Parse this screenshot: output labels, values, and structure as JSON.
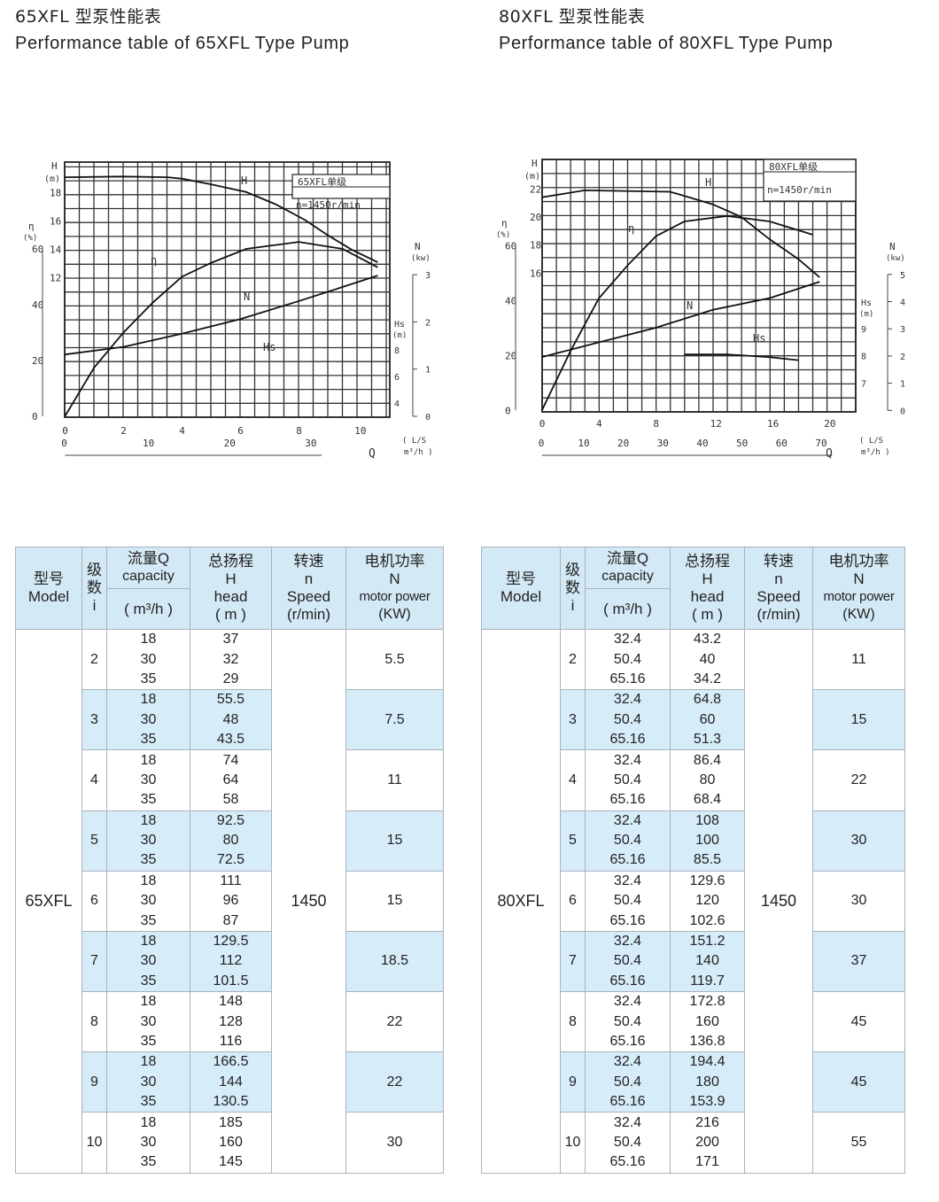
{
  "left": {
    "title": "65XFL 型泵性能表",
    "subtitle": "Performance table of 65XFL Type Pump",
    "chart": {
      "box_label": "65XFL单级",
      "speed_label": "n=1450r/min",
      "labels": {
        "H": "H",
        "eta": "η",
        "N": "N",
        "Hs": "Hs"
      },
      "axis_titles": {
        "H": "H",
        "H_unit": "(m)",
        "eta": "η",
        "eta_unit": "(%)",
        "N": "N",
        "N_unit": "(kw)",
        "Hs": "Hs",
        "Hs_unit": "(m)",
        "Q": "Q",
        "Q_unit1": "L/S",
        "Q_unit2": "m³/h"
      }
    },
    "table": {
      "model": "65XFL",
      "speed": "1450",
      "capacity": [
        "18",
        "30",
        "35"
      ],
      "rows": [
        {
          "stage": "2",
          "head": [
            "37",
            "32",
            "29"
          ],
          "power": "5.5"
        },
        {
          "stage": "3",
          "head": [
            "55.5",
            "48",
            "43.5"
          ],
          "power": "7.5"
        },
        {
          "stage": "4",
          "head": [
            "74",
            "64",
            "58"
          ],
          "power": "11"
        },
        {
          "stage": "5",
          "head": [
            "92.5",
            "80",
            "72.5"
          ],
          "power": "15"
        },
        {
          "stage": "6",
          "head": [
            "111",
            "96",
            "87"
          ],
          "power": "15"
        },
        {
          "stage": "7",
          "head": [
            "129.5",
            "112",
            "101.5"
          ],
          "power": "18.5"
        },
        {
          "stage": "8",
          "head": [
            "148",
            "128",
            "116"
          ],
          "power": "22"
        },
        {
          "stage": "9",
          "head": [
            "166.5",
            "144",
            "130.5"
          ],
          "power": "22"
        },
        {
          "stage": "10",
          "head": [
            "185",
            "160",
            "145"
          ],
          "power": "30"
        }
      ]
    }
  },
  "right": {
    "title": "80XFL 型泵性能表",
    "subtitle": "Performance table of 80XFL Type Pump",
    "chart": {
      "box_label": "80XFL单级",
      "speed_label": "n=1450r/min",
      "labels": {
        "H": "H",
        "eta": "η",
        "N": "N",
        "Hs": "Hs"
      },
      "axis_titles": {
        "H": "H",
        "H_unit": "(m)",
        "eta": "η",
        "eta_unit": "(%)",
        "N": "N",
        "N_unit": "(kw)",
        "Hs": "Hs",
        "Hs_unit": "(m)",
        "Q": "Q",
        "Q_unit1": "L/S",
        "Q_unit2": "m³/h"
      }
    },
    "table": {
      "model": "80XFL",
      "speed": "1450",
      "capacity": [
        "32.4",
        "50.4",
        "65.16"
      ],
      "rows": [
        {
          "stage": "2",
          "head": [
            "43.2",
            "40",
            "34.2"
          ],
          "power": "11"
        },
        {
          "stage": "3",
          "head": [
            "64.8",
            "60",
            "51.3"
          ],
          "power": "15"
        },
        {
          "stage": "4",
          "head": [
            "86.4",
            "80",
            "68.4"
          ],
          "power": "22"
        },
        {
          "stage": "5",
          "head": [
            "108",
            "100",
            "85.5"
          ],
          "power": "30"
        },
        {
          "stage": "6",
          "head": [
            "129.6",
            "120",
            "102.6"
          ],
          "power": "30"
        },
        {
          "stage": "7",
          "head": [
            "151.2",
            "140",
            "119.7"
          ],
          "power": "37"
        },
        {
          "stage": "8",
          "head": [
            "172.8",
            "160",
            "136.8"
          ],
          "power": "45"
        },
        {
          "stage": "9",
          "head": [
            "194.4",
            "180",
            "153.9"
          ],
          "power": "45"
        },
        {
          "stage": "10",
          "head": [
            "216",
            "200",
            "171"
          ],
          "power": "55"
        }
      ]
    }
  },
  "table_header": {
    "model_cn": "型号",
    "model_en": "Model",
    "stage_cn1": "级",
    "stage_cn2": "数",
    "stage_sym": "i",
    "cap_cn": "流量Q",
    "cap_en": "capacity",
    "cap_unit": "( m³/h )",
    "head_cn": "总扬程",
    "head_sym": "H",
    "head_en": "head",
    "head_unit": "( m )",
    "speed_cn": "转速",
    "speed_sym": "n",
    "speed_en": "Speed",
    "speed_unit": "(r/min)",
    "power_cn": "电机功率",
    "power_sym": "N",
    "power_en": "motor power",
    "power_unit": "(KW)"
  },
  "colors": {
    "header_bg": "#d4e9f6",
    "band_bg": "#d7ecf9",
    "border": "#a9b3bb"
  },
  "chart_data": [
    {
      "type": "line",
      "x_label": "Q (L/S)",
      "x_ticks": [
        0,
        2,
        4,
        6,
        8,
        10
      ],
      "x2_ticks_m3h": [
        0,
        10,
        20,
        30
      ],
      "H_ticks": [
        12,
        14,
        16,
        18
      ],
      "eta_ticks": [
        0,
        20,
        40,
        60
      ],
      "N_ticks": [
        0,
        1,
        2,
        3
      ],
      "Hs_ticks": [
        4,
        6,
        8
      ],
      "grid": true,
      "series": [
        {
          "name": "H",
          "axis": "H",
          "x": [
            0,
            2,
            3.5,
            4,
            5,
            6.2,
            7.2,
            8.2,
            9,
            9.8,
            10.7
          ],
          "y": [
            19.1,
            19.15,
            19.1,
            19.0,
            18.6,
            18.06,
            17.2,
            16.1,
            15.0,
            14.0,
            13.1
          ]
        },
        {
          "name": "η",
          "axis": "eta",
          "x": [
            0,
            1,
            2,
            3,
            4,
            5,
            6.2,
            8,
            9.5,
            10.7
          ],
          "y": [
            0,
            17.5,
            30,
            40.7,
            50,
            55,
            60,
            62.5,
            60,
            53.4
          ]
        },
        {
          "name": "N",
          "axis": "N",
          "x": [
            0,
            2,
            4,
            6,
            8,
            10.7
          ],
          "y": [
            1.31,
            1.47,
            1.75,
            2.06,
            2.44,
            2.98
          ]
        }
      ]
    },
    {
      "type": "line",
      "x_label": "Q (L/S)",
      "x_ticks": [
        0,
        4,
        8,
        12,
        16,
        20
      ],
      "x2_ticks_m3h": [
        0,
        10,
        20,
        30,
        40,
        50,
        60,
        70
      ],
      "H_ticks": [
        16,
        18,
        20,
        22
      ],
      "eta_ticks": [
        0,
        20,
        40,
        60
      ],
      "N_ticks": [
        0,
        1,
        2,
        3,
        4,
        5
      ],
      "Hs_ticks": [
        7,
        8,
        9
      ],
      "grid": true,
      "series": [
        {
          "name": "H",
          "axis": "H",
          "x": [
            0,
            3,
            9,
            12,
            14,
            16,
            18,
            19.5
          ],
          "y": [
            21.4,
            21.9,
            21.8,
            20.9,
            20.0,
            18.4,
            17.0,
            15.7
          ]
        },
        {
          "name": "η",
          "axis": "eta",
          "x": [
            0,
            2,
            4,
            6,
            8,
            10,
            13,
            16,
            19
          ],
          "y": [
            0,
            21.5,
            40.8,
            52.7,
            63.4,
            68.8,
            70.8,
            68.8,
            64
          ]
        },
        {
          "name": "N",
          "axis": "N",
          "x": [
            0,
            4,
            8,
            12,
            16,
            19.5
          ],
          "y": [
            1.96,
            2.5,
            3.04,
            3.7,
            4.13,
            4.73
          ]
        },
        {
          "name": "Hs",
          "axis": "Hs",
          "x": [
            10,
            13,
            16,
            18
          ],
          "y": [
            8.05,
            8.05,
            7.95,
            7.84
          ]
        }
      ]
    }
  ]
}
